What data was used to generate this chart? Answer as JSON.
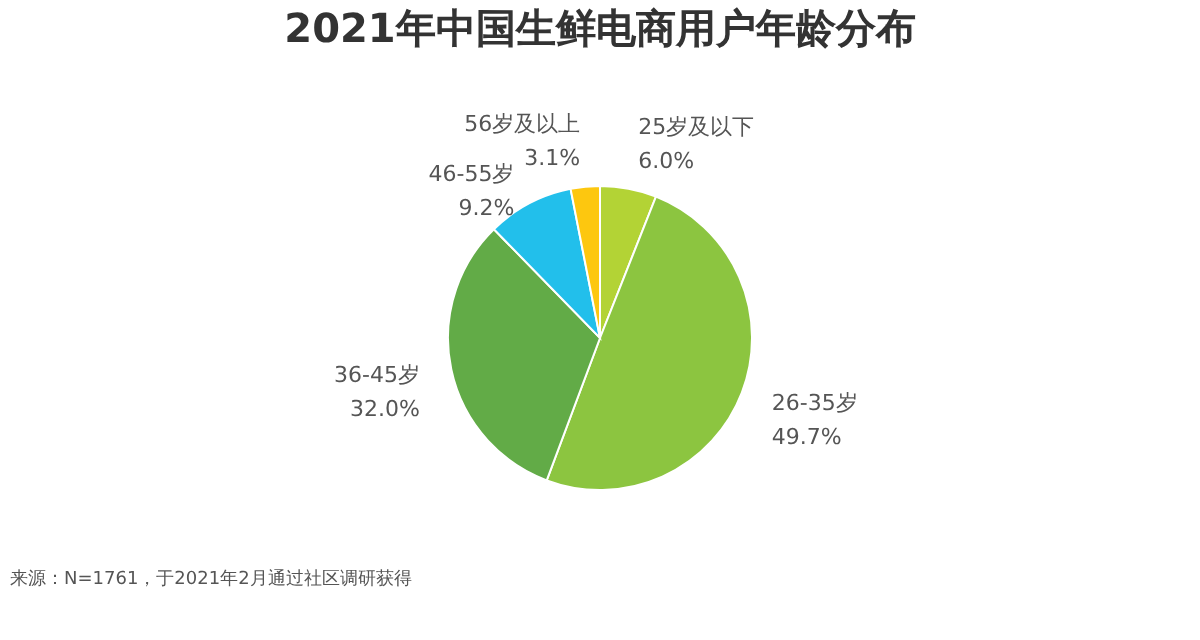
{
  "chart_data": {
    "type": "pie",
    "title": "2021年中国生鲜电商用户年龄分布",
    "categories": [
      "25岁及以下",
      "26-35岁",
      "36-45岁",
      "46-55岁",
      "56岁及以上"
    ],
    "values": [
      6.0,
      49.7,
      32.0,
      9.2,
      3.1
    ],
    "value_labels": [
      "6.0%",
      "49.7%",
      "32.0%",
      "9.2%",
      "3.1%"
    ],
    "colors": [
      "#b3d335",
      "#8cc540",
      "#62ab47",
      "#22bfeb",
      "#fdc70f"
    ],
    "legend": false,
    "annotations": [
      "来源：N=1761，于2021年2月通过社区调研获得"
    ]
  }
}
